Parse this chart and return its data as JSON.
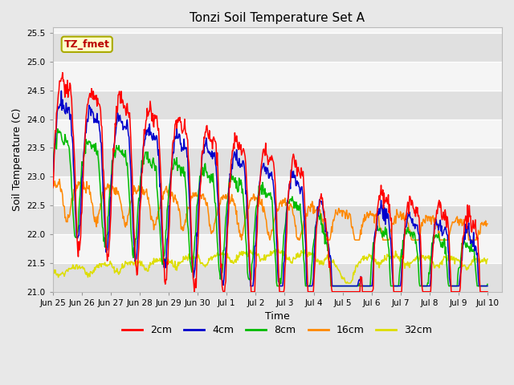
{
  "title": "Tonzi Soil Temperature Set A",
  "xlabel": "Time",
  "ylabel": "Soil Temperature (C)",
  "ylim": [
    21.0,
    25.6
  ],
  "yticks": [
    21.0,
    21.5,
    22.0,
    22.5,
    23.0,
    23.5,
    24.0,
    24.5,
    25.0,
    25.5
  ],
  "line_colors": {
    "2cm": "#ff0000",
    "4cm": "#0000cc",
    "8cm": "#00bb00",
    "16cm": "#ff8800",
    "32cm": "#dddd00"
  },
  "annotation_text": "TZ_fmet",
  "annotation_color": "#bb0000",
  "annotation_bg": "#ffffcc",
  "annotation_border": "#aaaa00",
  "fig_bg": "#e8e8e8",
  "plot_bg": "#f5f5f5",
  "band_colors": [
    "#e0e0e0",
    "#f5f5f5"
  ],
  "xtick_positions": [
    0,
    1,
    2,
    3,
    4,
    5,
    6,
    7,
    8,
    9,
    10,
    11,
    12,
    13,
    14,
    15
  ],
  "xtick_labels": [
    "Jun 25",
    "Jun 26",
    "Jun 27",
    "Jun 28",
    "Jun 29",
    "Jun 30",
    "Jul 1",
    "Jul 2",
    "Jul 3",
    "Jul 4",
    "Jul 5",
    "Jul 6",
    "Jul 7",
    "Jul 8",
    "Jul 9",
    "Jul 10"
  ]
}
